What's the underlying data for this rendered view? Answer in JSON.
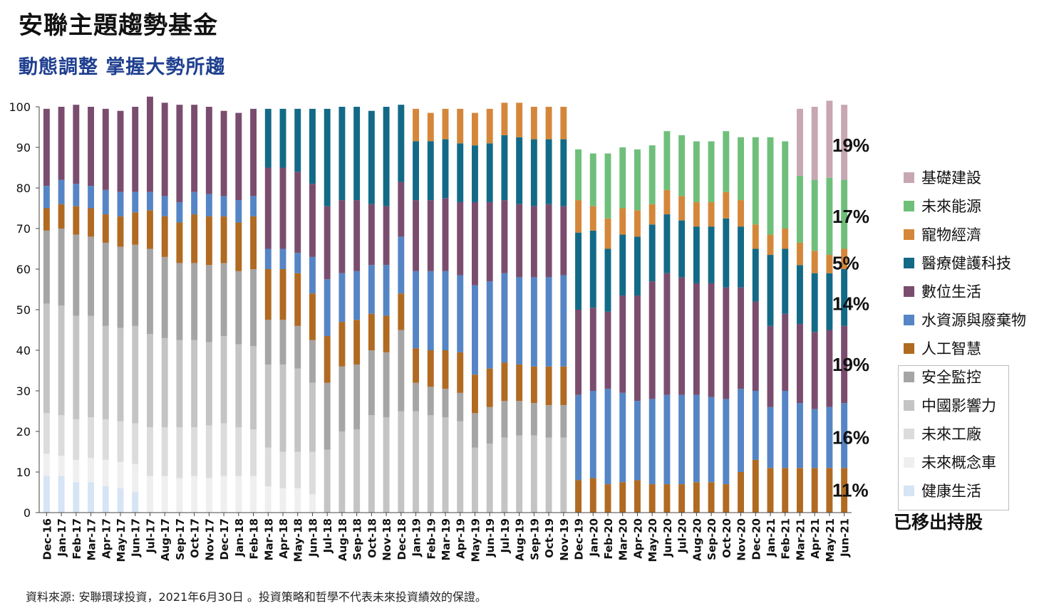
{
  "title": "安聯主題趨勢基金",
  "subtitle": "動態調整  掌握大勢所趨",
  "source": "資料來源: 安聯環球投資，2021年6月30日 。投資策略和哲學不代表未來投資績效的保證。",
  "removed_label": "已移出持股",
  "chart_data": {
    "type": "bar",
    "stacked": true,
    "ylim": [
      0,
      100
    ],
    "yticks": [
      0,
      10,
      20,
      30,
      40,
      50,
      60,
      70,
      80,
      90,
      100
    ],
    "categories": [
      "Dec-16",
      "Jan-17",
      "Feb-17",
      "Mar-17",
      "Apr-17",
      "May-17",
      "Jun-17",
      "Jul-17",
      "Aug-17",
      "Sep-17",
      "Oct-17",
      "Nov-17",
      "Dec-17",
      "Jan-18",
      "Feb-18",
      "Mar-18",
      "Apr-18",
      "May-18",
      "Jun-18",
      "Jul-18",
      "Aug-18",
      "Sep-18",
      "Oct-18",
      "Nov-18",
      "Dec-18",
      "Jan-19",
      "Feb-19",
      "Mar-19",
      "Apr-19",
      "May-19",
      "Jun-19",
      "Jul-19",
      "Aug-19",
      "Sep-19",
      "Oct-19",
      "Nov-19",
      "Dec-19",
      "Jan-20",
      "Feb-20",
      "Mar-20",
      "Apr-20",
      "May-20",
      "Jun-20",
      "Jul-20",
      "Aug-20",
      "Sep-20",
      "Oct-20",
      "Nov-20",
      "Dec-20",
      "Jan-21",
      "Feb-21",
      "Mar-21",
      "Apr-21",
      "May-21",
      "Jun-21"
    ],
    "series": [
      {
        "name": "健康生活",
        "color": "#d6e4f4",
        "values": [
          9,
          9,
          7.5,
          7.5,
          6.5,
          6,
          5,
          0,
          0,
          0,
          0,
          0,
          0,
          0,
          0,
          0,
          0,
          0,
          0,
          0,
          0,
          0,
          0,
          0,
          0,
          0,
          0,
          0,
          0,
          0,
          0,
          0,
          0,
          0,
          0,
          0,
          0,
          0,
          0,
          0,
          0,
          0,
          0,
          0,
          0,
          0,
          0,
          0,
          0,
          0,
          0,
          0,
          0,
          0,
          0
        ]
      },
      {
        "name": "未來概念車",
        "color": "#efefef",
        "values": [
          5.5,
          5,
          5.5,
          6,
          6.5,
          6.5,
          7,
          9,
          9,
          8.5,
          9,
          8.5,
          9,
          9,
          9,
          6.5,
          6,
          6,
          4.5,
          0,
          0,
          0,
          0,
          0,
          0,
          0,
          0,
          0,
          0,
          0,
          0,
          0,
          0,
          0,
          0,
          0,
          0,
          0,
          0,
          0,
          0,
          0,
          0,
          0,
          0,
          0,
          0,
          0,
          0,
          0,
          0,
          0,
          0,
          0,
          0
        ]
      },
      {
        "name": "未來工廠",
        "color": "#dcdcdc",
        "values": [
          10,
          10,
          10,
          10,
          10,
          10,
          10,
          12,
          12,
          12.5,
          12,
          13,
          13,
          12,
          11.5,
          9.5,
          9,
          9,
          10.5,
          0,
          0,
          0,
          0,
          0,
          0,
          0,
          0,
          0,
          0,
          0,
          0,
          0,
          0,
          0,
          0,
          0,
          0,
          0,
          0,
          0,
          0,
          0,
          0,
          0,
          0,
          0,
          0,
          0,
          0,
          0,
          0,
          0,
          0,
          0,
          0
        ]
      },
      {
        "name": "中國影響力",
        "color": "#c4c4c4",
        "values": [
          27,
          27,
          25.5,
          25,
          23,
          23,
          24,
          23,
          22,
          21.5,
          21.5,
          20.5,
          21.5,
          20.5,
          20.5,
          20.5,
          21.5,
          20.5,
          17,
          15.5,
          20,
          20.5,
          24,
          23.5,
          25,
          25,
          24,
          23.5,
          22.5,
          16,
          17,
          18.5,
          19,
          19,
          18.5,
          18.5,
          0,
          0,
          0,
          0,
          0,
          0,
          0,
          0,
          0,
          0,
          0,
          0,
          0,
          0,
          0,
          0,
          0,
          0,
          0
        ]
      },
      {
        "name": "安全監控",
        "color": "#a5a5a5",
        "values": [
          18,
          19,
          20,
          19.5,
          20.5,
          20,
          20,
          21,
          20,
          19,
          19,
          19,
          18,
          18,
          19,
          11,
          11,
          10.5,
          10.5,
          16.5,
          16,
          16,
          16,
          16,
          20,
          7,
          7,
          7,
          7,
          8.5,
          9,
          9,
          8.5,
          8,
          8,
          8,
          0,
          0,
          0,
          0,
          0,
          0,
          0,
          0,
          0,
          0,
          0,
          0,
          0,
          0,
          0,
          0,
          0,
          0,
          0
        ]
      },
      {
        "name": "人工智慧",
        "color": "#b06a22",
        "values": [
          5.5,
          6,
          7,
          7,
          7,
          7.5,
          8,
          9.5,
          10,
          10,
          12,
          12,
          11.5,
          12,
          13,
          12.5,
          12.5,
          13,
          11.5,
          11.5,
          11,
          11,
          9,
          9,
          9,
          8.5,
          9,
          9.5,
          10,
          9.5,
          9.5,
          9.5,
          9,
          9,
          9.5,
          9.5,
          8,
          8.5,
          7,
          7.5,
          8,
          7,
          7,
          7,
          7.5,
          7.5,
          7,
          10,
          13,
          11,
          11,
          11,
          11,
          11,
          11
        ]
      },
      {
        "name": "水資源與廢棄物",
        "color": "#5585c5",
        "values": [
          5.5,
          6,
          5.5,
          5.5,
          6,
          6,
          5,
          4.5,
          5,
          5,
          5.5,
          5.5,
          5,
          5.5,
          5,
          5,
          5,
          5,
          9,
          14,
          12,
          12,
          12,
          12.5,
          14,
          19,
          19.5,
          19.5,
          19,
          22,
          21.5,
          22,
          21.5,
          22,
          22,
          22.5,
          21,
          21.5,
          23.5,
          22,
          19.5,
          21,
          22,
          22,
          21.5,
          21,
          21,
          20.5,
          17,
          15,
          19,
          16,
          14.5,
          15,
          16
        ]
      },
      {
        "name": "數位生活",
        "color": "#7a4d6e",
        "values": [
          19,
          18,
          19.5,
          19.5,
          20,
          20,
          21,
          23.5,
          23,
          24,
          21.5,
          21.5,
          21,
          21.5,
          21.5,
          20,
          20,
          20,
          18,
          18,
          18,
          17.5,
          15,
          14.5,
          13.5,
          17.5,
          17.5,
          18,
          18,
          20.5,
          19.5,
          18,
          18,
          17.5,
          18,
          17,
          21,
          20.5,
          19,
          24,
          26,
          29,
          30,
          29,
          27.5,
          28,
          27.5,
          25,
          22,
          20,
          19,
          19.5,
          19,
          19,
          19
        ]
      },
      {
        "name": "醫療健護科技",
        "color": "#136a87",
        "values": [
          0,
          0,
          0,
          0,
          0,
          0,
          0,
          0,
          0,
          0,
          0,
          0,
          0,
          0,
          0,
          14.5,
          14.5,
          15.5,
          18.5,
          24,
          23,
          23,
          23,
          24.5,
          19,
          14.5,
          14.5,
          14.5,
          14.5,
          14,
          14.5,
          16,
          16.5,
          16.5,
          16,
          16.5,
          19,
          19,
          15.5,
          15,
          14.5,
          14,
          14.5,
          14,
          14,
          14,
          17,
          15,
          13,
          17.5,
          16,
          14.5,
          14.5,
          14,
          14
        ]
      },
      {
        "name": "寵物經濟",
        "color": "#d4873a",
        "values": [
          0,
          0,
          0,
          0,
          0,
          0,
          0,
          0,
          0,
          0,
          0,
          0,
          0,
          0,
          0,
          0,
          0,
          0,
          0,
          0,
          0,
          0,
          0,
          0,
          0,
          8,
          7,
          7.5,
          8.5,
          8,
          8.5,
          8,
          8.5,
          8,
          8,
          8,
          8,
          6,
          7.5,
          6.5,
          6.5,
          5,
          6,
          6,
          6,
          6,
          6.5,
          6.5,
          6,
          5,
          5,
          5.5,
          5.5,
          4.5,
          5
        ]
      },
      {
        "name": "未來能源",
        "color": "#6fbf7b",
        "values": [
          0,
          0,
          0,
          0,
          0,
          0,
          0,
          0,
          0,
          0,
          0,
          0,
          0,
          0,
          0,
          0,
          0,
          0,
          0,
          0,
          0,
          0,
          0,
          0,
          0,
          0,
          0,
          0,
          0,
          0,
          0,
          0,
          0,
          0,
          0,
          0,
          12.5,
          13,
          16,
          15,
          15,
          14.5,
          14.5,
          15,
          15,
          15,
          15,
          15.5,
          21.5,
          24,
          21.5,
          16.5,
          17.5,
          19,
          17
        ]
      },
      {
        "name": "基礎建設",
        "color": "#c7a7b2",
        "values": [
          0,
          0,
          0,
          0,
          0,
          0,
          0,
          0,
          0,
          0,
          0,
          0,
          0,
          0,
          0,
          0,
          0,
          0,
          0,
          0,
          0,
          0,
          0,
          0,
          0,
          0,
          0,
          0,
          0,
          0,
          0,
          0,
          0,
          0,
          0,
          0,
          0,
          0,
          0,
          0,
          0,
          0,
          0,
          0,
          0,
          0,
          0,
          0,
          0,
          0,
          0,
          16.5,
          18,
          19,
          18.5
        ]
      }
    ],
    "end_labels": [
      {
        "text": "19%",
        "y": 90.5
      },
      {
        "text": "17%",
        "y": 73
      },
      {
        "text": "5%",
        "y": 61.5
      },
      {
        "text": "14%",
        "y": 51.5
      },
      {
        "text": "19%",
        "y": 36.5
      },
      {
        "text": "16%",
        "y": 18.5
      },
      {
        "text": "11%",
        "y": 5.5
      }
    ]
  },
  "legend": {
    "current": [
      {
        "label": "基礎建設",
        "color": "#c7a7b2"
      },
      {
        "label": "未來能源",
        "color": "#6fbf7b"
      },
      {
        "label": "寵物經濟",
        "color": "#d4873a"
      },
      {
        "label": "醫療健護科技",
        "color": "#136a87"
      },
      {
        "label": "數位生活",
        "color": "#7a4d6e"
      },
      {
        "label": "水資源與廢棄物",
        "color": "#5585c5"
      },
      {
        "label": "人工智慧",
        "color": "#b06a22"
      }
    ],
    "removed": [
      {
        "label": "安全監控",
        "color": "#a5a5a5"
      },
      {
        "label": "中國影響力",
        "color": "#c4c4c4"
      },
      {
        "label": "未來工廠",
        "color": "#dcdcdc"
      },
      {
        "label": "未來概念車",
        "color": "#efefef"
      },
      {
        "label": "健康生活",
        "color": "#d6e4f4"
      }
    ]
  }
}
